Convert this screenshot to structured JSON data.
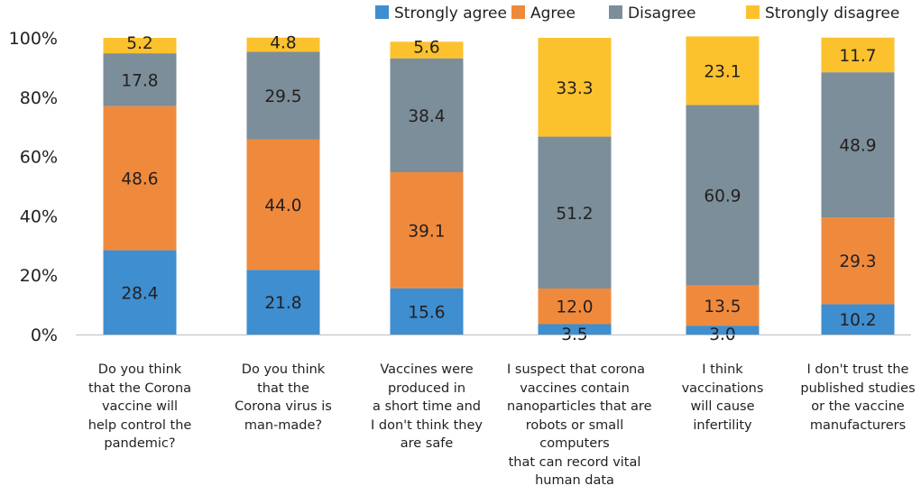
{
  "chart_data": {
    "type": "bar",
    "stacked": true,
    "title": "",
    "xlabel": "",
    "ylabel": "",
    "ylim": [
      0,
      100
    ],
    "yticks": [
      "0%",
      "20%",
      "40%",
      "60%",
      "80%",
      "100%"
    ],
    "legend_position": "top",
    "grid": false,
    "categories": [
      [
        "Do you think",
        "that the Corona",
        "vaccine will",
        "help control the",
        "pandemic?"
      ],
      [
        "Do you think",
        "that the",
        "Corona virus is",
        "man-made?"
      ],
      [
        "Vaccines were",
        "produced in",
        "a short time and",
        "I don't think they",
        "are safe"
      ],
      [
        "I suspect that corona",
        "vaccines contain",
        "nanoparticles that are",
        "robots or small",
        "computers",
        "that can record vital",
        "human data"
      ],
      [
        "I think",
        "vaccinations",
        "will cause",
        "infertility"
      ],
      [
        "I don't trust the",
        "published studies",
        "or the vaccine",
        "manufacturers"
      ]
    ],
    "series": [
      {
        "name": "Strongly agree",
        "color": "#3e8ed0",
        "values": [
          28.4,
          21.8,
          15.6,
          3.5,
          3.0,
          10.2
        ],
        "labels": [
          "28.4",
          "21.8",
          "15.6",
          "3.5",
          "3.0",
          "10.2"
        ]
      },
      {
        "name": "Agree",
        "color": "#ef8a3d",
        "values": [
          48.6,
          44.0,
          39.1,
          12.0,
          13.5,
          29.3
        ],
        "labels": [
          "48.6",
          "44.0",
          "39.1",
          "12.0",
          "13.5",
          "29.3"
        ]
      },
      {
        "name": "Disagree",
        "color": "#7b8e99",
        "values": [
          17.8,
          29.5,
          38.4,
          51.2,
          60.9,
          48.9
        ],
        "labels": [
          "17.8",
          "29.5",
          "38.4",
          "51.2",
          "60.9",
          "48.9"
        ]
      },
      {
        "name": "Strongly disagree",
        "color": "#fcc22e",
        "values": [
          5.2,
          4.8,
          5.6,
          33.3,
          23.1,
          11.7
        ],
        "labels": [
          "5.2",
          "4.8",
          "5.6",
          "33.3",
          "23.1",
          "11.7"
        ]
      }
    ]
  }
}
